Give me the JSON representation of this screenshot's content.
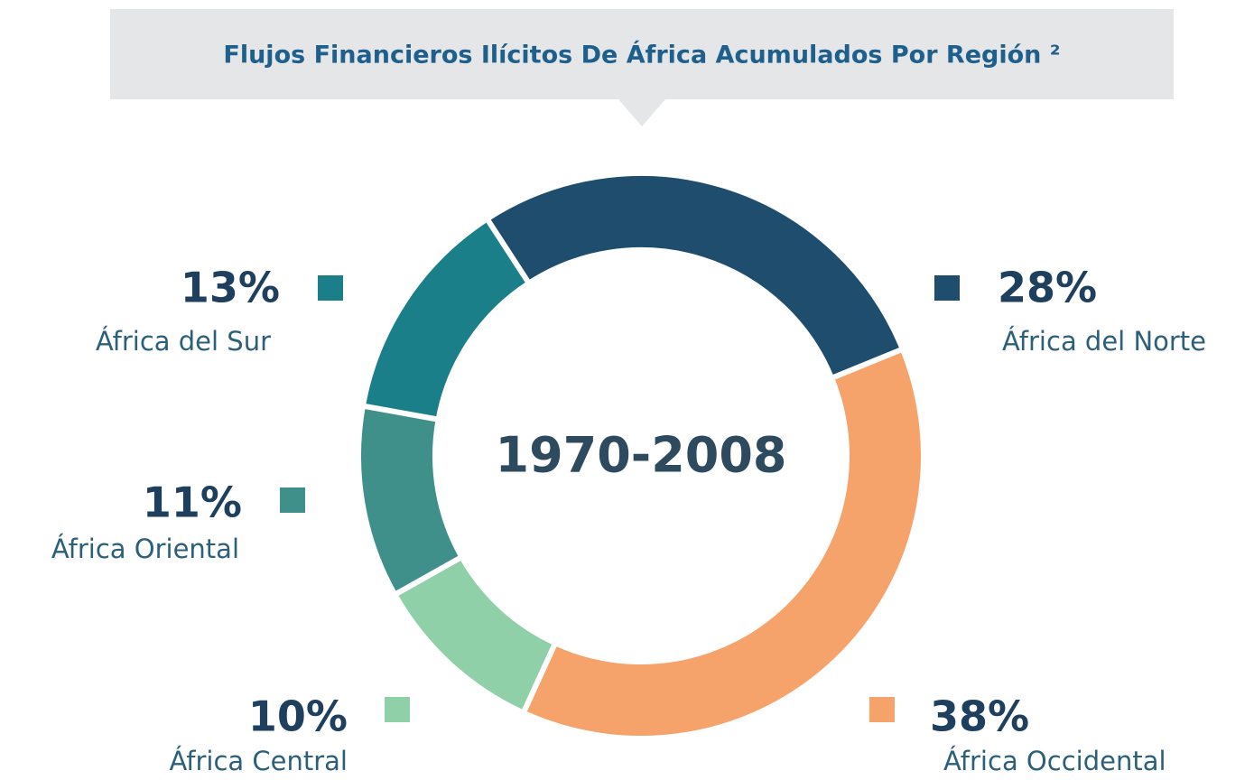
{
  "chart_data": {
    "type": "donut",
    "title": "Flujos Financieros Ilícitos De África Acumulados Por Región ²",
    "center_label": "1970-2008",
    "categories": [
      "África del Norte",
      "África Occidental",
      "África Central",
      "África Oriental",
      "África del Sur"
    ],
    "values": [
      28,
      38,
      10,
      11,
      13
    ],
    "value_labels": [
      "28%",
      "38%",
      "10%",
      "11%",
      "13%"
    ],
    "colors": [
      "#1f4d6d",
      "#f6a36b",
      "#8fd0a8",
      "#3f908b",
      "#1b7f8a"
    ]
  }
}
